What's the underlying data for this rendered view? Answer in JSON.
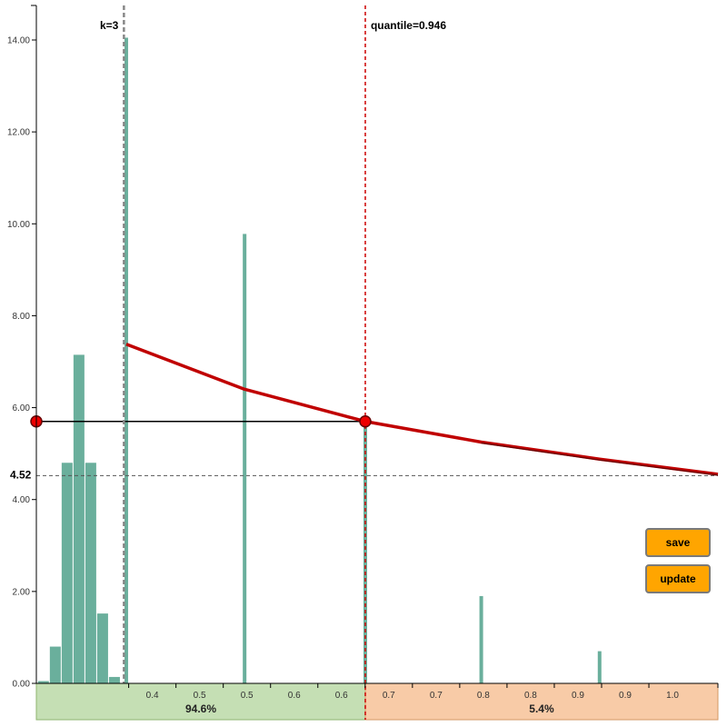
{
  "chart_data": {
    "type": "bar",
    "x_ticks": [
      "0.4",
      "0.5",
      "0.5",
      "0.6",
      "0.6",
      "0.7",
      "0.7",
      "0.8",
      "0.8",
      "0.9",
      "0.9",
      "1.0"
    ],
    "y_ticks": [
      "0.00",
      "2.00",
      "4.00",
      "6.00",
      "8.00",
      "10.00",
      "12.00",
      "14.00"
    ],
    "ylim": [
      0,
      14.2
    ],
    "bars": [
      {
        "x": 0.285,
        "value": 0.05
      },
      {
        "x": 0.31,
        "value": 0.8
      },
      {
        "x": 0.335,
        "value": 4.8
      },
      {
        "x": 0.36,
        "value": 7.15
      },
      {
        "x": 0.385,
        "value": 4.8
      },
      {
        "x": 0.41,
        "value": 1.52
      },
      {
        "x": 0.435,
        "value": 0.14
      },
      {
        "x": 0.46,
        "value": 14.05
      },
      {
        "x": 0.71,
        "value": 9.78
      },
      {
        "x": 0.965,
        "value": 5.7
      },
      {
        "x": 1.21,
        "value": 1.9
      },
      {
        "x": 1.46,
        "value": 0.7
      }
    ],
    "curve": [
      {
        "x": 0.46,
        "y": 7.38
      },
      {
        "x": 0.71,
        "y": 6.4
      },
      {
        "x": 0.965,
        "y": 5.7
      },
      {
        "x": 1.21,
        "y": 5.25
      },
      {
        "x": 1.46,
        "y": 4.88
      },
      {
        "x": 1.71,
        "y": 4.55
      }
    ],
    "horizontal_line_value": 5.7,
    "k_line_x": 0.455,
    "quantile_line_x": 0.965,
    "reference_value": 4.52,
    "reference_label": "4.52",
    "k_label": "k=3",
    "quantile_label": "quantile=0.946",
    "left_share": "94.6%",
    "right_share": "5.4%",
    "colors": {
      "bar": "#6aaf9c",
      "curve": "#c00000",
      "quantile_line": "#cc0000",
      "k_line": "#888888",
      "marker": "#ee0000",
      "left_band": "#c5dfb4",
      "right_band": "#f8cba7",
      "button": "#ffa500"
    }
  },
  "buttons": {
    "save": "save",
    "update": "update"
  }
}
